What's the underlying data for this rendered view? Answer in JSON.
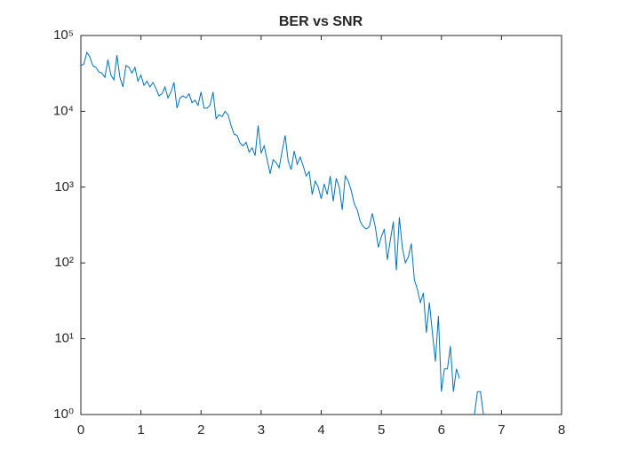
{
  "chart_data": {
    "type": "line",
    "title": "BER vs SNR",
    "x": [
      0,
      0.05,
      0.1,
      0.15,
      0.2,
      0.25,
      0.3,
      0.35,
      0.4,
      0.45,
      0.5,
      0.55,
      0.6,
      0.65,
      0.7,
      0.75,
      0.8,
      0.85,
      0.9,
      0.95,
      1,
      1.05,
      1.1,
      1.15,
      1.2,
      1.25,
      1.3,
      1.35,
      1.4,
      1.45,
      1.5,
      1.55,
      1.6,
      1.65,
      1.7,
      1.75,
      1.8,
      1.85,
      1.9,
      1.95,
      2,
      2.05,
      2.1,
      2.15,
      2.2,
      2.25,
      2.3,
      2.35,
      2.4,
      2.45,
      2.5,
      2.55,
      2.6,
      2.65,
      2.7,
      2.75,
      2.8,
      2.85,
      2.9,
      2.95,
      3,
      3.05,
      3.1,
      3.15,
      3.2,
      3.25,
      3.3,
      3.35,
      3.4,
      3.45,
      3.5,
      3.55,
      3.6,
      3.65,
      3.7,
      3.75,
      3.8,
      3.85,
      3.9,
      3.95,
      4,
      4.05,
      4.1,
      4.15,
      4.2,
      4.25,
      4.3,
      4.35,
      4.4,
      4.45,
      4.5,
      4.55,
      4.6,
      4.65,
      4.7,
      4.75,
      4.8,
      4.85,
      4.9,
      4.95,
      5,
      5.05,
      5.1,
      5.15,
      5.2,
      5.25,
      5.3,
      5.35,
      5.4,
      5.45,
      5.5,
      5.55,
      5.6,
      5.65,
      5.7,
      5.75,
      5.8,
      5.85,
      5.9,
      5.95,
      6,
      6.05,
      6.1,
      6.15,
      6.2,
      6.25,
      6.3,
      6.35,
      6.4,
      6.45,
      6.5,
      6.55,
      6.6,
      6.65,
      6.7
    ],
    "series": [
      {
        "color": "#0072bd",
        "values": [
          40000,
          42000,
          60000,
          52000,
          40000,
          38000,
          33000,
          32000,
          28000,
          48000,
          30000,
          26000,
          55000,
          28000,
          21000,
          40000,
          38000,
          32000,
          38000,
          25000,
          30000,
          22000,
          25000,
          21000,
          24000,
          20000,
          16000,
          17000,
          21000,
          15000,
          18000,
          24000,
          11000,
          15000,
          16000,
          15000,
          17000,
          13000,
          14000,
          12000,
          18000,
          11000,
          11000,
          12000,
          18000,
          8000,
          9000,
          8500,
          10000,
          9000,
          6500,
          5000,
          4800,
          3800,
          3500,
          3900,
          2900,
          3300,
          2600,
          6500,
          2800,
          3500,
          2300,
          1500,
          2300,
          2100,
          1800,
          3000,
          4800,
          2200,
          1700,
          3000,
          2000,
          2500,
          1900,
          1400,
          1600,
          800,
          1200,
          1000,
          700,
          1100,
          800,
          1400,
          650,
          1300,
          1000,
          500,
          1400,
          1200,
          900,
          600,
          500,
          350,
          300,
          280,
          300,
          450,
          300,
          160,
          220,
          280,
          110,
          200,
          350,
          80,
          400,
          160,
          100,
          120,
          180,
          60,
          45,
          30,
          40,
          12,
          30,
          12,
          5,
          20,
          2,
          4,
          4,
          8,
          2,
          4,
          3,
          null,
          null,
          null,
          null,
          1,
          2,
          2,
          1
        ]
      }
    ],
    "xlim": [
      0,
      8
    ],
    "xticks": [
      0,
      1,
      2,
      3,
      4,
      5,
      6,
      7,
      8
    ],
    "ylim": [
      1,
      100000
    ],
    "log_y": true,
    "yticks": [
      {
        "value": 1,
        "label": "10⁰"
      },
      {
        "value": 10,
        "label": "10¹"
      },
      {
        "value": 100,
        "label": "10²"
      },
      {
        "value": 1000,
        "label": "10³"
      },
      {
        "value": 10000,
        "label": "10⁴"
      },
      {
        "value": 100000,
        "label": "10⁵"
      }
    ]
  }
}
